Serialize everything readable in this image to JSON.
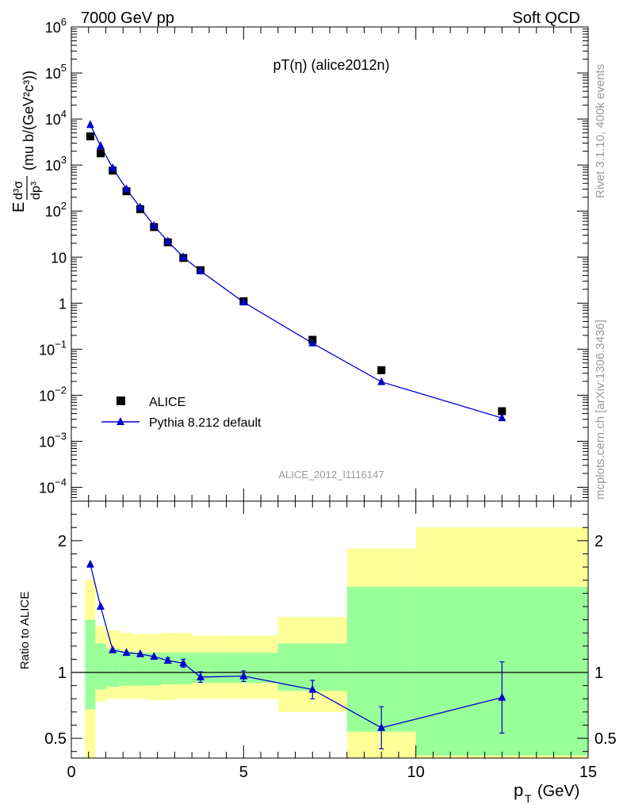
{
  "header": {
    "left": "7000 GeV pp",
    "right": "Soft QCD"
  },
  "side_text": {
    "rivet": "Rivet 3.1.10,  400k events",
    "mcplots": "mcplots.cern.ch [arXiv:1306.3436]"
  },
  "chart_data": [
    {
      "type": "scatter",
      "title": "pT(η) (alice2012n)",
      "watermark": "ALICE_2012_I1116147",
      "ylabel_prefix": "E",
      "ylabel_frac_num": "d³σ",
      "ylabel_frac_den": "dp³",
      "ylabel_units": "(mu b/(GeV²c³))",
      "yscale": "log",
      "ylim": [
        5e-05,
        1000000
      ],
      "xlim": [
        0,
        15
      ],
      "x_tick_labels": [
        "0",
        "5",
        "10",
        "15"
      ],
      "y_tick_labels": [
        {
          "base": "10",
          "exp": "6",
          "v": 1000000
        },
        {
          "base": "10",
          "exp": "5",
          "v": 100000
        },
        {
          "base": "10",
          "exp": "4",
          "v": 10000
        },
        {
          "base": "10",
          "exp": "3",
          "v": 1000
        },
        {
          "base": "10",
          "exp": "2",
          "v": 100
        },
        {
          "base": "10",
          "exp": "",
          "v": 10
        },
        {
          "base": "1",
          "exp": "",
          "v": 1
        },
        {
          "base": "10",
          "exp": "−1",
          "v": 0.1
        },
        {
          "base": "10",
          "exp": "−2",
          "v": 0.01
        },
        {
          "base": "10",
          "exp": "−3",
          "v": 0.001
        },
        {
          "base": "10",
          "exp": "−4",
          "v": 0.0001
        }
      ],
      "legend_placement": "bottom-left",
      "series": [
        {
          "name": "ALICE",
          "marker": "square",
          "color": "#000000",
          "x": [
            0.55,
            0.85,
            1.2,
            1.6,
            2.0,
            2.4,
            2.8,
            3.25,
            3.75,
            5.0,
            7.0,
            9.0,
            12.5
          ],
          "y": [
            4200,
            1800,
            760,
            270,
            110,
            45,
            21,
            9.6,
            5.2,
            1.1,
            0.16,
            0.035,
            0.0045
          ]
        },
        {
          "name": "Pythia 8.212 default",
          "marker": "triangle",
          "color": "#0000cc",
          "x": [
            0.55,
            0.85,
            1.2,
            1.6,
            2.0,
            2.4,
            2.8,
            3.25,
            3.75,
            5.0,
            7.0,
            9.0,
            12.5
          ],
          "y": [
            7500,
            2600,
            860,
            300,
            120,
            48,
            22,
            10,
            5.0,
            1.05,
            0.135,
            0.0195,
            0.0032
          ]
        }
      ]
    },
    {
      "type": "line",
      "ylabel": "Ratio to ALICE",
      "ylim": [
        0.35,
        2.3
      ],
      "xlim": [
        0,
        15
      ],
      "xlabel_main": "p",
      "xlabel_sub": "T",
      "xlabel_unit": "(GeV)",
      "y_tick_labels": [
        "2",
        "1",
        "0.5"
      ],
      "y_tick_values": [
        2,
        1,
        0.5
      ],
      "bands": {
        "edges": [
          0.4,
          0.7,
          1.0,
          1.4,
          1.8,
          2.2,
          2.6,
          3.0,
          3.5,
          4.0,
          6.0,
          8.0,
          10.0,
          15.0
        ],
        "stat_syst_yellow_low": [
          0.2,
          0.78,
          0.8,
          0.8,
          0.8,
          0.79,
          0.79,
          0.8,
          0.8,
          0.8,
          0.7,
          0.3,
          0.3
        ],
        "stat_syst_yellow_high": [
          1.7,
          1.35,
          1.32,
          1.3,
          1.29,
          1.29,
          1.3,
          1.3,
          1.28,
          1.28,
          1.42,
          1.94,
          2.1
        ],
        "green_low": [
          0.72,
          0.87,
          0.89,
          0.9,
          0.9,
          0.9,
          0.91,
          0.91,
          0.92,
          0.92,
          0.86,
          0.55,
          0.37
        ],
        "green_high": [
          1.4,
          1.22,
          1.18,
          1.16,
          1.15,
          1.15,
          1.15,
          1.15,
          1.15,
          1.15,
          1.22,
          1.65,
          1.65
        ],
        "yellow_color": "#ffff99",
        "green_color": "#99ff99"
      },
      "series": [
        {
          "name": "Pythia 8.212 default",
          "color": "#0000cc",
          "x": [
            0.55,
            0.85,
            1.2,
            1.6,
            2.0,
            2.4,
            2.8,
            3.25,
            3.75,
            5.0,
            7.0,
            9.0,
            12.5
          ],
          "y": [
            1.82,
            1.5,
            1.17,
            1.15,
            1.14,
            1.12,
            1.09,
            1.07,
            0.965,
            0.972,
            0.87,
            0.58,
            0.81
          ],
          "err": [
            0,
            0,
            0,
            0,
            0,
            0,
            0.02,
            0.03,
            0.04,
            0.04,
            0.07,
            0.16,
            0.27
          ]
        }
      ]
    }
  ]
}
